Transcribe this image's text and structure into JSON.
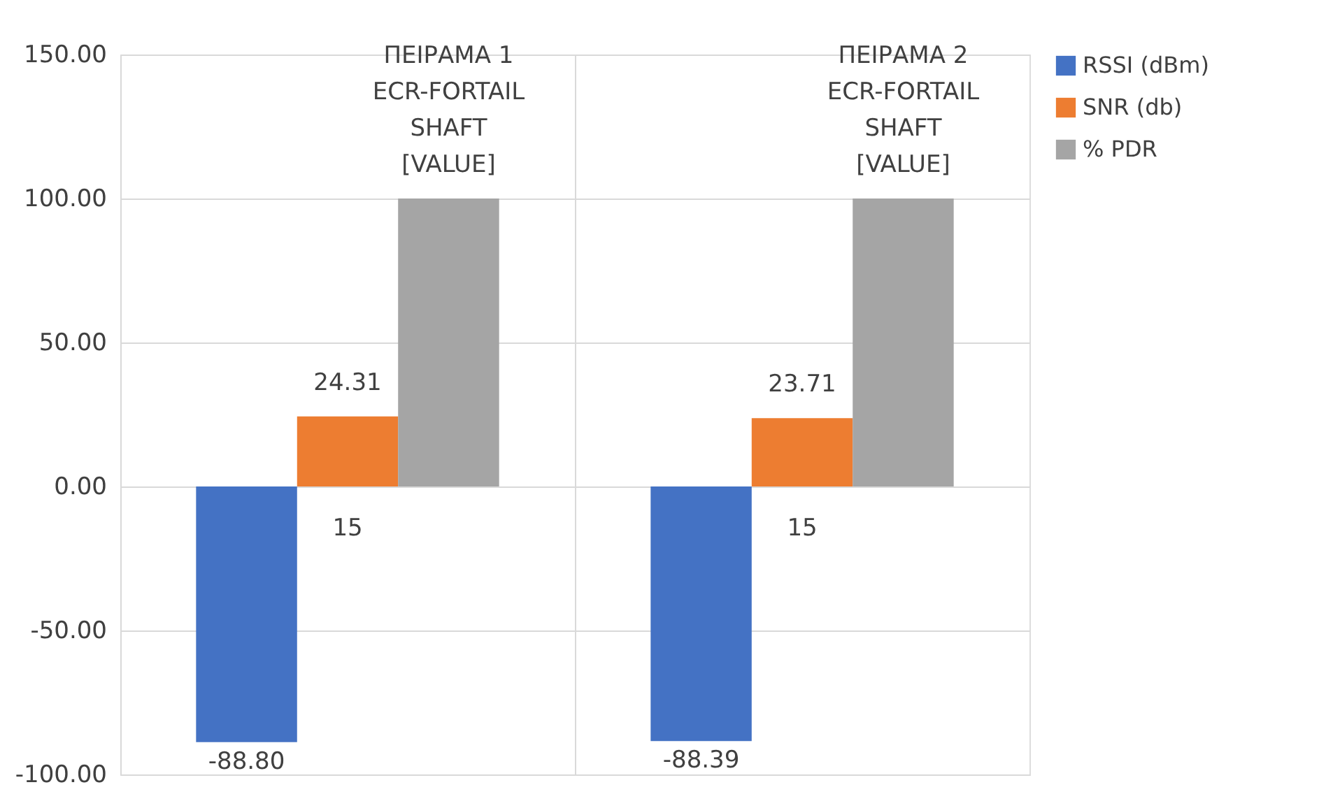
{
  "chart_data": {
    "type": "bar",
    "categories": [
      null,
      null
    ],
    "series": [
      {
        "name": "RSSI (dBm)",
        "color": "#4472c4",
        "values": [
          -88.8,
          -88.39
        ],
        "value_labels": [
          "-88.80",
          "-88.39"
        ]
      },
      {
        "name": "SNR (db)",
        "color": "#ed7d31",
        "values": [
          24.31,
          23.71
        ],
        "value_labels": [
          "24.31",
          "23.71"
        ]
      },
      {
        "name": "% PDR",
        "color": "#a5a5a5",
        "values": [
          100,
          100
        ],
        "value_labels": [
          "ΠΕΙΡΑΜΑ 1\nECR-FORTAIL\nSHAFT\n[VALUE]",
          "ΠΕΙΡΑΜΑ 2\nECR-FORTAIL\nSHAFT\n[VALUE]"
        ]
      }
    ],
    "ylim": [
      -100,
      150
    ],
    "yticks": [
      {
        "value": -100,
        "label": "-100.00"
      },
      {
        "value": -50,
        "label": "-50.00"
      },
      {
        "value": 0,
        "label": "0.00"
      },
      {
        "value": 50,
        "label": "50.00"
      },
      {
        "value": 100,
        "label": "100.00"
      },
      {
        "value": 150,
        "label": "150.00"
      }
    ],
    "annotations": [
      "15",
      "15"
    ],
    "grid": true,
    "legend": "right",
    "tick_labels": "y"
  }
}
